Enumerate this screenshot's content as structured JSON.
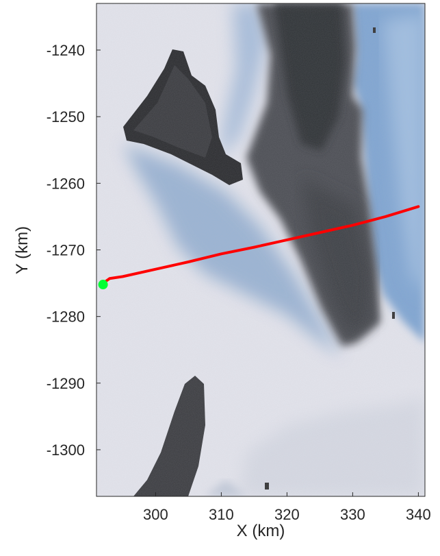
{
  "chart_data": {
    "type": "map",
    "title": "",
    "xlabel": "X (km)",
    "ylabel": "Y (km)",
    "xlim": [
      291,
      341
    ],
    "ylim": [
      -1307,
      -1233
    ],
    "xticks": [
      300,
      310,
      320,
      330,
      340
    ],
    "yticks": [
      -1240,
      -1250,
      -1260,
      -1270,
      -1280,
      -1290,
      -1300
    ],
    "xtick_labels": [
      "300",
      "310",
      "320",
      "330",
      "340"
    ],
    "ytick_labels": [
      "-1240",
      "-1250",
      "-1260",
      "-1270",
      "-1280",
      "-1290",
      "-1300"
    ],
    "grid": false,
    "background": "satellite imagery of glacier and rock outcrops",
    "series": [
      {
        "type": "line",
        "color": "#ff0000",
        "x": [
          292.0,
          293.0,
          295.0,
          300.0,
          305.0,
          310.0,
          315.0,
          320.0,
          325.0,
          330.0,
          335.0,
          340.0
        ],
        "y": [
          -1275.0,
          -1274.3,
          -1274.0,
          -1272.9,
          -1271.8,
          -1270.6,
          -1269.6,
          -1268.5,
          -1267.4,
          -1266.3,
          -1265.0,
          -1263.5
        ]
      },
      {
        "type": "marker",
        "color": "#00ff33",
        "x": [
          292.0
        ],
        "y": [
          -1275.2
        ]
      }
    ]
  }
}
